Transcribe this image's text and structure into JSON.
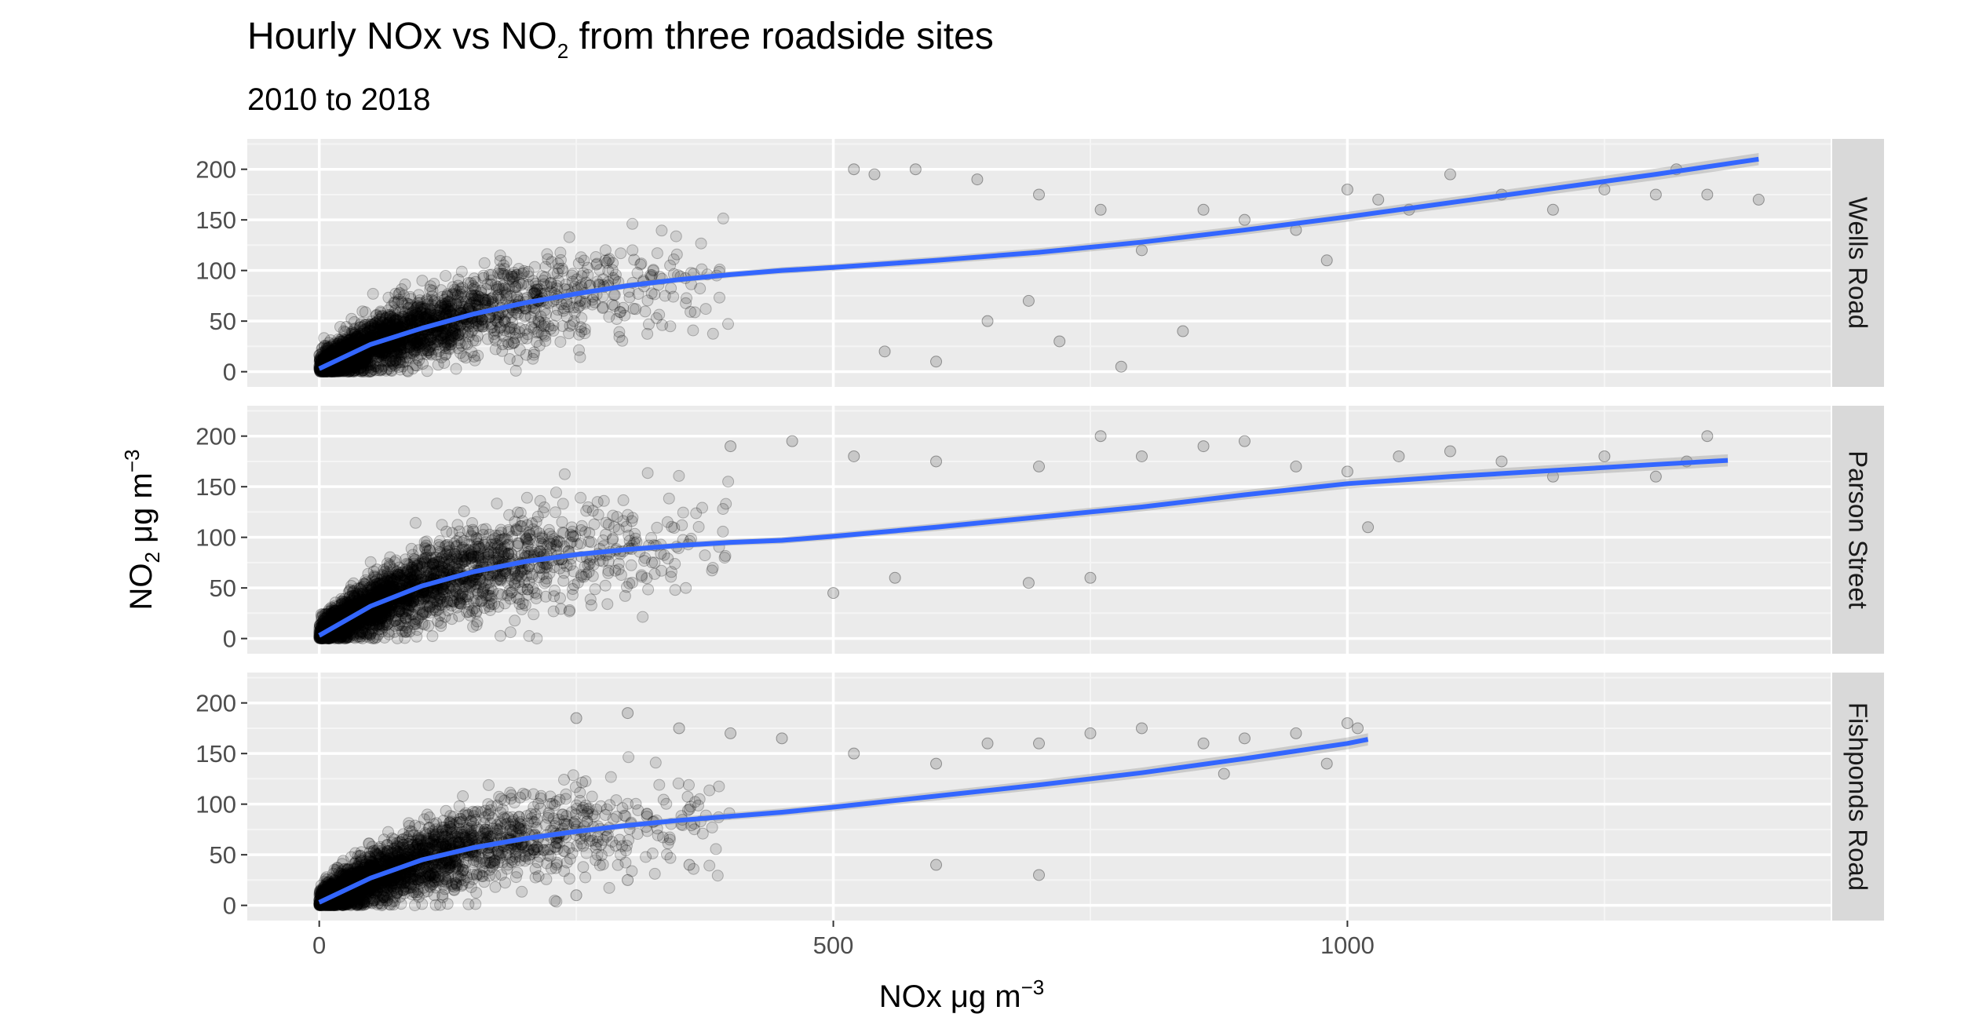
{
  "chart_data": {
    "type": "scatter",
    "title": {
      "prefix": "Hourly NOx vs NO",
      "subscript": "2",
      "suffix": " from three roadside sites"
    },
    "subtitle": "2010 to 2018",
    "xlabel": {
      "main": "NOx ",
      "mu": "μ",
      "unit": "g m",
      "sup": "−3"
    },
    "ylabel": {
      "main": "NO",
      "subscript": "2",
      "mu": " μ",
      "unit": "g m",
      "sup": "−3"
    },
    "xlim": [
      -70,
      1470
    ],
    "ylim": [
      -15,
      230
    ],
    "x_ticks": [
      0,
      500,
      1000
    ],
    "x_tick_labels": [
      "0",
      "500",
      "1000"
    ],
    "y_ticks": [
      0,
      50,
      100,
      150,
      200
    ],
    "y_tick_labels": [
      "0",
      "50",
      "100",
      "150",
      "200"
    ],
    "point_color": "#000000",
    "point_alpha": 0.12,
    "smooth_color": "#3366ff",
    "panel_background": "#ebebeb",
    "strip_background": "#d9d9d9",
    "grid": true,
    "panels": [
      {
        "name": "Wells Road",
        "max_nox": 1400,
        "smooth": {
          "x": [
            0,
            50,
            100,
            150,
            200,
            250,
            300,
            350,
            400,
            450,
            500,
            600,
            700,
            800,
            900,
            1000,
            1100,
            1200,
            1300,
            1400
          ],
          "y": [
            3,
            27,
            43,
            57,
            68,
            77,
            85,
            91,
            96,
            100,
            103,
            110,
            118,
            128,
            140,
            153,
            167,
            181,
            195,
            210
          ]
        },
        "outliers": [
          [
            520,
            200
          ],
          [
            540,
            195
          ],
          [
            580,
            200
          ],
          [
            640,
            190
          ],
          [
            700,
            175
          ],
          [
            760,
            160
          ],
          [
            800,
            120
          ],
          [
            860,
            160
          ],
          [
            900,
            150
          ],
          [
            950,
            140
          ],
          [
            980,
            110
          ],
          [
            1000,
            180
          ],
          [
            1030,
            170
          ],
          [
            1060,
            160
          ],
          [
            1100,
            195
          ],
          [
            1150,
            175
          ],
          [
            1200,
            160
          ],
          [
            1250,
            180
          ],
          [
            1300,
            175
          ],
          [
            1320,
            200
          ],
          [
            1350,
            175
          ],
          [
            1400,
            170
          ],
          [
            720,
            30
          ],
          [
            780,
            5
          ],
          [
            650,
            50
          ],
          [
            690,
            70
          ],
          [
            840,
            40
          ],
          [
            550,
            20
          ],
          [
            600,
            10
          ]
        ]
      },
      {
        "name": "Parson Street",
        "max_nox": 1370,
        "smooth": {
          "x": [
            0,
            50,
            100,
            150,
            200,
            250,
            300,
            350,
            400,
            450,
            500,
            600,
            700,
            800,
            900,
            1000,
            1100,
            1200,
            1300,
            1370
          ],
          "y": [
            3,
            32,
            52,
            66,
            76,
            83,
            88,
            92,
            95,
            97,
            101,
            110,
            120,
            130,
            142,
            153,
            160,
            166,
            172,
            176
          ]
        },
        "outliers": [
          [
            400,
            190
          ],
          [
            460,
            195
          ],
          [
            520,
            180
          ],
          [
            600,
            175
          ],
          [
            700,
            170
          ],
          [
            760,
            200
          ],
          [
            800,
            180
          ],
          [
            860,
            190
          ],
          [
            900,
            195
          ],
          [
            950,
            170
          ],
          [
            1000,
            165
          ],
          [
            1020,
            110
          ],
          [
            1050,
            180
          ],
          [
            1100,
            185
          ],
          [
            1150,
            175
          ],
          [
            1200,
            160
          ],
          [
            1250,
            180
          ],
          [
            1300,
            160
          ],
          [
            1350,
            200
          ],
          [
            1330,
            175
          ],
          [
            690,
            55
          ],
          [
            750,
            60
          ],
          [
            500,
            45
          ],
          [
            560,
            60
          ]
        ]
      },
      {
        "name": "Fishponds Road",
        "max_nox": 1020,
        "smooth": {
          "x": [
            0,
            50,
            100,
            150,
            200,
            250,
            300,
            350,
            400,
            450,
            500,
            600,
            700,
            800,
            900,
            1000,
            1020
          ],
          "y": [
            3,
            27,
            45,
            57,
            66,
            73,
            79,
            84,
            88,
            92,
            97,
            108,
            119,
            131,
            145,
            160,
            164
          ]
        },
        "outliers": [
          [
            250,
            185
          ],
          [
            300,
            190
          ],
          [
            350,
            175
          ],
          [
            400,
            170
          ],
          [
            450,
            165
          ],
          [
            520,
            150
          ],
          [
            600,
            140
          ],
          [
            650,
            160
          ],
          [
            700,
            160
          ],
          [
            750,
            170
          ],
          [
            800,
            175
          ],
          [
            860,
            160
          ],
          [
            880,
            130
          ],
          [
            900,
            165
          ],
          [
            950,
            170
          ],
          [
            980,
            140
          ],
          [
            1000,
            180
          ],
          [
            1010,
            175
          ],
          [
            300,
            25
          ],
          [
            360,
            40
          ],
          [
            600,
            40
          ],
          [
            700,
            30
          ],
          [
            250,
            10
          ]
        ]
      }
    ]
  }
}
